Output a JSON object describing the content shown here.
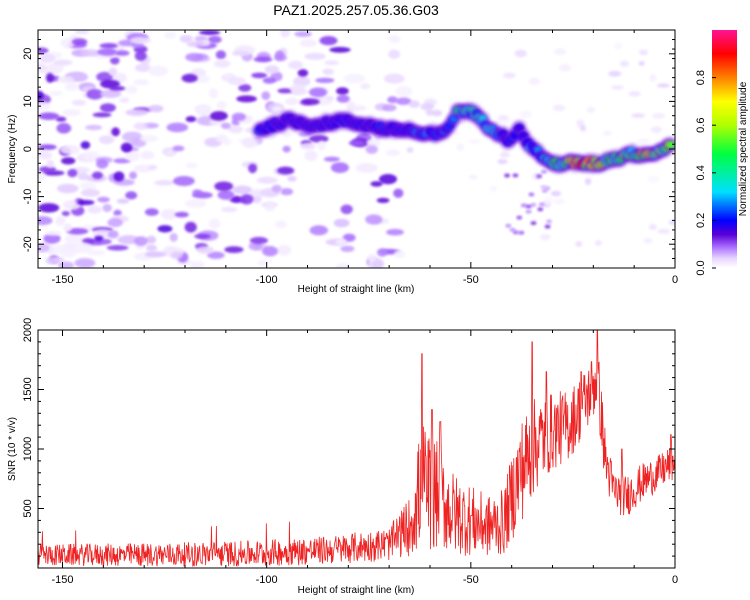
{
  "chart_data": [
    {
      "type": "heatmap",
      "title": "PAZ1.2025.257.05.36.G03",
      "xlabel": "Height of straight line (km)",
      "ylabel": "Frequency (Hz)",
      "xlim": [
        -156,
        0
      ],
      "ylim": [
        -25,
        25
      ],
      "xticks": [
        -150,
        -100,
        -50,
        0
      ],
      "yticks": [
        -20,
        -10,
        0,
        10,
        20
      ],
      "colorbar": {
        "label": "Normalized spectral amplitude",
        "range": [
          0,
          1
        ],
        "ticks": [
          "0.0",
          "0.2",
          "0.4",
          "0.6",
          "0.8"
        ],
        "colormap": [
          "#ffffff",
          "#e8d6ff",
          "#a66bff",
          "#5a00d6",
          "#0000ff",
          "#00e0ff",
          "#00ff40",
          "#b0ff00",
          "#ffff00",
          "#ff8000",
          "#ff0000",
          "#ff1493"
        ]
      },
      "ridge": [
        {
          "x": -102,
          "y": 4,
          "a": 0.25
        },
        {
          "x": -95,
          "y": 6,
          "a": 0.18
        },
        {
          "x": -88,
          "y": 5,
          "a": 0.15
        },
        {
          "x": -82,
          "y": 6,
          "a": 0.2
        },
        {
          "x": -75,
          "y": 5,
          "a": 0.18
        },
        {
          "x": -70,
          "y": 4,
          "a": 0.25
        },
        {
          "x": -65,
          "y": 4,
          "a": 0.2
        },
        {
          "x": -62,
          "y": 3,
          "a": 0.3
        },
        {
          "x": -57,
          "y": 3,
          "a": 0.22
        },
        {
          "x": -53,
          "y": 8,
          "a": 0.45
        },
        {
          "x": -50,
          "y": 8,
          "a": 0.4
        },
        {
          "x": -46,
          "y": 5,
          "a": 0.35
        },
        {
          "x": -44,
          "y": 4,
          "a": 0.3
        },
        {
          "x": -41,
          "y": 2,
          "a": 0.2
        },
        {
          "x": -38,
          "y": 4,
          "a": 0.25
        },
        {
          "x": -36,
          "y": 1,
          "a": 0.3
        },
        {
          "x": -33,
          "y": -1,
          "a": 0.3
        },
        {
          "x": -31,
          "y": -3,
          "a": 0.4
        },
        {
          "x": -28,
          "y": -3,
          "a": 0.5
        },
        {
          "x": -25,
          "y": -3,
          "a": 0.85
        },
        {
          "x": -22,
          "y": -3,
          "a": 0.9
        },
        {
          "x": -18,
          "y": -3,
          "a": 0.6
        },
        {
          "x": -16,
          "y": -2,
          "a": 0.55
        },
        {
          "x": -14,
          "y": -2,
          "a": 0.5
        },
        {
          "x": -12,
          "y": -1,
          "a": 0.55
        },
        {
          "x": -10,
          "y": -1,
          "a": 0.5
        },
        {
          "x": -7,
          "y": -1,
          "a": 0.9
        },
        {
          "x": -5,
          "y": -1,
          "a": 0.6
        },
        {
          "x": -3,
          "y": 0,
          "a": 0.55
        },
        {
          "x": -1,
          "y": 1,
          "a": 0.6
        }
      ]
    },
    {
      "type": "line",
      "xlabel": "Height of straight line (km)",
      "ylabel": "SNR (10 * v/v)",
      "xlim": [
        -156,
        0
      ],
      "ylim": [
        0,
        2000
      ],
      "xticks": [
        -150,
        -100,
        -50,
        0
      ],
      "yticks": [
        500,
        1000,
        1500,
        2000
      ],
      "line_color": "#ee2222",
      "envelope": [
        {
          "x": -156,
          "mean": 110,
          "amp": 90
        },
        {
          "x": -130,
          "mean": 110,
          "amp": 100
        },
        {
          "x": -105,
          "mean": 120,
          "amp": 110
        },
        {
          "x": -85,
          "mean": 150,
          "amp": 120
        },
        {
          "x": -70,
          "mean": 200,
          "amp": 140
        },
        {
          "x": -65,
          "mean": 350,
          "amp": 250
        },
        {
          "x": -62,
          "mean": 700,
          "amp": 550
        },
        {
          "x": -58,
          "mean": 600,
          "amp": 450
        },
        {
          "x": -54,
          "mean": 450,
          "amp": 350
        },
        {
          "x": -50,
          "mean": 400,
          "amp": 300
        },
        {
          "x": -46,
          "mean": 350,
          "amp": 260
        },
        {
          "x": -42,
          "mean": 380,
          "amp": 280
        },
        {
          "x": -38,
          "mean": 800,
          "amp": 450
        },
        {
          "x": -34,
          "mean": 1050,
          "amp": 400
        },
        {
          "x": -30,
          "mean": 1150,
          "amp": 330
        },
        {
          "x": -26,
          "mean": 1200,
          "amp": 300
        },
        {
          "x": -22,
          "mean": 1400,
          "amp": 280
        },
        {
          "x": -19,
          "mean": 1600,
          "amp": 300
        },
        {
          "x": -17,
          "mean": 900,
          "amp": 250
        },
        {
          "x": -15,
          "mean": 650,
          "amp": 180
        },
        {
          "x": -12,
          "mean": 600,
          "amp": 180
        },
        {
          "x": -8,
          "mean": 720,
          "amp": 160
        },
        {
          "x": -4,
          "mean": 800,
          "amp": 150
        },
        {
          "x": 0,
          "mean": 900,
          "amp": 160
        }
      ],
      "peaks": [
        {
          "x": -62,
          "y": 1800
        },
        {
          "x": -59.5,
          "y": 1330
        },
        {
          "x": -57.5,
          "y": 1230
        },
        {
          "x": -35,
          "y": 1900
        },
        {
          "x": -31.5,
          "y": 1650
        },
        {
          "x": -23,
          "y": 1650
        },
        {
          "x": -19,
          "y": 2000
        },
        {
          "x": -13,
          "y": 1000
        },
        {
          "x": -1,
          "y": 1120
        }
      ]
    }
  ]
}
